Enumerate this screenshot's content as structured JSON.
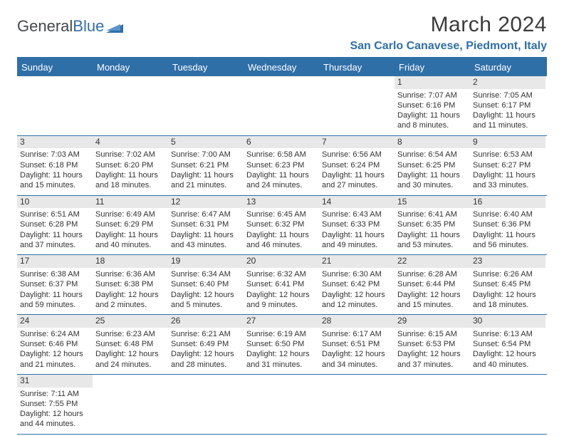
{
  "logo": {
    "word1": "General",
    "word2": "Blue"
  },
  "title": "March 2024",
  "subtitle": "San Carlo Canavese, Piedmont, Italy",
  "accent_color": "#2f6fa8",
  "header_bg": "#2f6fa8",
  "daynum_bg": "#e8e8e8",
  "row_border_color": "#2f6fa8",
  "days_of_week": [
    "Sunday",
    "Monday",
    "Tuesday",
    "Wednesday",
    "Thursday",
    "Friday",
    "Saturday"
  ],
  "weeks": [
    [
      {
        "empty": true
      },
      {
        "empty": true
      },
      {
        "empty": true
      },
      {
        "empty": true
      },
      {
        "empty": true
      },
      {
        "day": "1",
        "sunrise": "Sunrise: 7:07 AM",
        "sunset": "Sunset: 6:16 PM",
        "daylight": "Daylight: 11 hours and 8 minutes."
      },
      {
        "day": "2",
        "sunrise": "Sunrise: 7:05 AM",
        "sunset": "Sunset: 6:17 PM",
        "daylight": "Daylight: 11 hours and 11 minutes."
      }
    ],
    [
      {
        "day": "3",
        "sunrise": "Sunrise: 7:03 AM",
        "sunset": "Sunset: 6:18 PM",
        "daylight": "Daylight: 11 hours and 15 minutes."
      },
      {
        "day": "4",
        "sunrise": "Sunrise: 7:02 AM",
        "sunset": "Sunset: 6:20 PM",
        "daylight": "Daylight: 11 hours and 18 minutes."
      },
      {
        "day": "5",
        "sunrise": "Sunrise: 7:00 AM",
        "sunset": "Sunset: 6:21 PM",
        "daylight": "Daylight: 11 hours and 21 minutes."
      },
      {
        "day": "6",
        "sunrise": "Sunrise: 6:58 AM",
        "sunset": "Sunset: 6:23 PM",
        "daylight": "Daylight: 11 hours and 24 minutes."
      },
      {
        "day": "7",
        "sunrise": "Sunrise: 6:56 AM",
        "sunset": "Sunset: 6:24 PM",
        "daylight": "Daylight: 11 hours and 27 minutes."
      },
      {
        "day": "8",
        "sunrise": "Sunrise: 6:54 AM",
        "sunset": "Sunset: 6:25 PM",
        "daylight": "Daylight: 11 hours and 30 minutes."
      },
      {
        "day": "9",
        "sunrise": "Sunrise: 6:53 AM",
        "sunset": "Sunset: 6:27 PM",
        "daylight": "Daylight: 11 hours and 33 minutes."
      }
    ],
    [
      {
        "day": "10",
        "sunrise": "Sunrise: 6:51 AM",
        "sunset": "Sunset: 6:28 PM",
        "daylight": "Daylight: 11 hours and 37 minutes."
      },
      {
        "day": "11",
        "sunrise": "Sunrise: 6:49 AM",
        "sunset": "Sunset: 6:29 PM",
        "daylight": "Daylight: 11 hours and 40 minutes."
      },
      {
        "day": "12",
        "sunrise": "Sunrise: 6:47 AM",
        "sunset": "Sunset: 6:31 PM",
        "daylight": "Daylight: 11 hours and 43 minutes."
      },
      {
        "day": "13",
        "sunrise": "Sunrise: 6:45 AM",
        "sunset": "Sunset: 6:32 PM",
        "daylight": "Daylight: 11 hours and 46 minutes."
      },
      {
        "day": "14",
        "sunrise": "Sunrise: 6:43 AM",
        "sunset": "Sunset: 6:33 PM",
        "daylight": "Daylight: 11 hours and 49 minutes."
      },
      {
        "day": "15",
        "sunrise": "Sunrise: 6:41 AM",
        "sunset": "Sunset: 6:35 PM",
        "daylight": "Daylight: 11 hours and 53 minutes."
      },
      {
        "day": "16",
        "sunrise": "Sunrise: 6:40 AM",
        "sunset": "Sunset: 6:36 PM",
        "daylight": "Daylight: 11 hours and 56 minutes."
      }
    ],
    [
      {
        "day": "17",
        "sunrise": "Sunrise: 6:38 AM",
        "sunset": "Sunset: 6:37 PM",
        "daylight": "Daylight: 11 hours and 59 minutes."
      },
      {
        "day": "18",
        "sunrise": "Sunrise: 6:36 AM",
        "sunset": "Sunset: 6:38 PM",
        "daylight": "Daylight: 12 hours and 2 minutes."
      },
      {
        "day": "19",
        "sunrise": "Sunrise: 6:34 AM",
        "sunset": "Sunset: 6:40 PM",
        "daylight": "Daylight: 12 hours and 5 minutes."
      },
      {
        "day": "20",
        "sunrise": "Sunrise: 6:32 AM",
        "sunset": "Sunset: 6:41 PM",
        "daylight": "Daylight: 12 hours and 9 minutes."
      },
      {
        "day": "21",
        "sunrise": "Sunrise: 6:30 AM",
        "sunset": "Sunset: 6:42 PM",
        "daylight": "Daylight: 12 hours and 12 minutes."
      },
      {
        "day": "22",
        "sunrise": "Sunrise: 6:28 AM",
        "sunset": "Sunset: 6:44 PM",
        "daylight": "Daylight: 12 hours and 15 minutes."
      },
      {
        "day": "23",
        "sunrise": "Sunrise: 6:26 AM",
        "sunset": "Sunset: 6:45 PM",
        "daylight": "Daylight: 12 hours and 18 minutes."
      }
    ],
    [
      {
        "day": "24",
        "sunrise": "Sunrise: 6:24 AM",
        "sunset": "Sunset: 6:46 PM",
        "daylight": "Daylight: 12 hours and 21 minutes."
      },
      {
        "day": "25",
        "sunrise": "Sunrise: 6:23 AM",
        "sunset": "Sunset: 6:48 PM",
        "daylight": "Daylight: 12 hours and 24 minutes."
      },
      {
        "day": "26",
        "sunrise": "Sunrise: 6:21 AM",
        "sunset": "Sunset: 6:49 PM",
        "daylight": "Daylight: 12 hours and 28 minutes."
      },
      {
        "day": "27",
        "sunrise": "Sunrise: 6:19 AM",
        "sunset": "Sunset: 6:50 PM",
        "daylight": "Daylight: 12 hours and 31 minutes."
      },
      {
        "day": "28",
        "sunrise": "Sunrise: 6:17 AM",
        "sunset": "Sunset: 6:51 PM",
        "daylight": "Daylight: 12 hours and 34 minutes."
      },
      {
        "day": "29",
        "sunrise": "Sunrise: 6:15 AM",
        "sunset": "Sunset: 6:53 PM",
        "daylight": "Daylight: 12 hours and 37 minutes."
      },
      {
        "day": "30",
        "sunrise": "Sunrise: 6:13 AM",
        "sunset": "Sunset: 6:54 PM",
        "daylight": "Daylight: 12 hours and 40 minutes."
      }
    ],
    [
      {
        "day": "31",
        "sunrise": "Sunrise: 7:11 AM",
        "sunset": "Sunset: 7:55 PM",
        "daylight": "Daylight: 12 hours and 44 minutes."
      },
      {
        "empty": true
      },
      {
        "empty": true
      },
      {
        "empty": true
      },
      {
        "empty": true
      },
      {
        "empty": true
      },
      {
        "empty": true
      }
    ]
  ]
}
